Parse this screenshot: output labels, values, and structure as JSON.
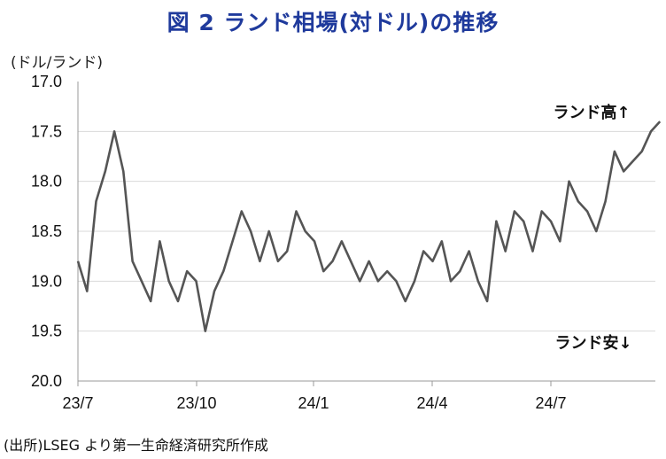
{
  "title": "図 2 ランド相場(対ドル)の推移",
  "unit_label": "(ドル/ランド)",
  "source": "(出所)LSEG より第一生命経済研究所作成",
  "chart_data": {
    "type": "line",
    "y_inverted": true,
    "ylim": [
      17.0,
      20.0
    ],
    "yticks": [
      "17.0",
      "17.5",
      "18.0",
      "18.5",
      "19.0",
      "19.5",
      "20.0"
    ],
    "ytick_values": [
      17.0,
      17.5,
      18.0,
      18.5,
      19.0,
      19.5,
      20.0
    ],
    "xticks": [
      "23/7",
      "23/10",
      "24/1",
      "24/4",
      "24/7"
    ],
    "annotations": {
      "top": "ランド高↑",
      "bottom": "ランド安↓"
    },
    "series": [
      {
        "line_color": "#555555",
        "x": [
          "2023-07-03",
          "2023-07-10",
          "2023-07-17",
          "2023-07-24",
          "2023-07-31",
          "2023-08-07",
          "2023-08-14",
          "2023-08-21",
          "2023-08-28",
          "2023-09-04",
          "2023-09-11",
          "2023-09-18",
          "2023-09-25",
          "2023-10-02",
          "2023-10-09",
          "2023-10-16",
          "2023-10-23",
          "2023-10-30",
          "2023-11-06",
          "2023-11-13",
          "2023-11-20",
          "2023-11-27",
          "2023-12-04",
          "2023-12-11",
          "2023-12-18",
          "2023-12-25",
          "2024-01-01",
          "2024-01-08",
          "2024-01-15",
          "2024-01-22",
          "2024-01-29",
          "2024-02-05",
          "2024-02-12",
          "2024-02-19",
          "2024-02-26",
          "2024-03-04",
          "2024-03-11",
          "2024-03-18",
          "2024-03-25",
          "2024-04-01",
          "2024-04-08",
          "2024-04-15",
          "2024-04-22",
          "2024-04-29",
          "2024-05-06",
          "2024-05-13",
          "2024-05-20",
          "2024-05-27",
          "2024-06-03",
          "2024-06-10",
          "2024-06-17",
          "2024-06-24",
          "2024-07-01",
          "2024-07-08",
          "2024-07-15",
          "2024-07-22",
          "2024-07-29",
          "2024-08-05",
          "2024-08-12",
          "2024-08-19",
          "2024-08-26",
          "2024-09-02",
          "2024-09-09",
          "2024-09-16",
          "2024-09-23"
        ],
        "values": [
          18.8,
          19.1,
          18.2,
          17.9,
          17.5,
          17.9,
          18.8,
          19.0,
          19.2,
          18.6,
          19.0,
          19.2,
          18.9,
          19.0,
          19.5,
          19.1,
          18.9,
          18.6,
          18.3,
          18.5,
          18.8,
          18.5,
          18.8,
          18.7,
          18.3,
          18.5,
          18.6,
          18.9,
          18.8,
          18.6,
          18.8,
          19.0,
          18.8,
          19.0,
          18.9,
          19.0,
          19.2,
          19.0,
          18.7,
          18.8,
          18.6,
          19.0,
          18.9,
          18.7,
          19.0,
          19.2,
          18.4,
          18.7,
          18.3,
          18.4,
          18.7,
          18.3,
          18.4,
          18.6,
          18.0,
          18.2,
          18.3,
          18.5,
          18.2,
          17.7,
          17.9,
          17.8,
          17.7,
          17.5,
          17.4
        ]
      }
    ]
  }
}
